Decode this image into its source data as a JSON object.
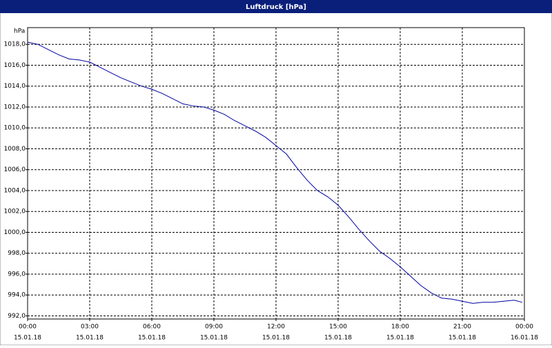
{
  "chart_data": {
    "type": "line",
    "title": "Luftdruck [hPa]",
    "y_unit": "hPa",
    "series": [
      {
        "name": "Luftdruck",
        "color": "#0000a0",
        "x": [
          0,
          0.5,
          1,
          1.5,
          2,
          2.5,
          3,
          3.5,
          4,
          4.5,
          5,
          5.5,
          6,
          6.5,
          7,
          7.5,
          8,
          8.5,
          9,
          9.5,
          10,
          10.5,
          11,
          11.5,
          12,
          12.5,
          13,
          13.5,
          14,
          14.5,
          15,
          15.5,
          16,
          16.5,
          17,
          17.5,
          18,
          18.5,
          19,
          19.5,
          20,
          20.5,
          21,
          21.5,
          22,
          22.5,
          23,
          23.5,
          23.9
        ],
        "values": [
          1018.2,
          1018.0,
          1017.5,
          1017.0,
          1016.6,
          1016.5,
          1016.3,
          1015.8,
          1015.3,
          1014.8,
          1014.4,
          1014.0,
          1013.7,
          1013.3,
          1012.8,
          1012.3,
          1012.1,
          1012.0,
          1011.7,
          1011.3,
          1010.7,
          1010.2,
          1009.7,
          1009.1,
          1008.3,
          1007.5,
          1006.2,
          1005.0,
          1004.0,
          1003.4,
          1002.6,
          1001.5,
          1000.3,
          999.2,
          998.2,
          997.5,
          996.7,
          995.8,
          994.9,
          994.2,
          993.7,
          993.6,
          993.4,
          993.2,
          993.3,
          993.3,
          993.4,
          993.5,
          993.3
        ]
      }
    ],
    "xlim": [
      0,
      24
    ],
    "xticks": [
      {
        "value": 0,
        "label": "00:00"
      },
      {
        "value": 3,
        "label": "03:00"
      },
      {
        "value": 6,
        "label": "06:00"
      },
      {
        "value": 9,
        "label": "09:00"
      },
      {
        "value": 12,
        "label": "12:00"
      },
      {
        "value": 15,
        "label": "15:00"
      },
      {
        "value": 18,
        "label": "18:00"
      },
      {
        "value": 21,
        "label": "21:00"
      },
      {
        "value": 24,
        "label": "00:00"
      }
    ],
    "xtick_dates": [
      "15.01.18",
      "15.01.18",
      "15.01.18",
      "15.01.18",
      "15.01.18",
      "15.01.18",
      "15.01.18",
      "15.01.18",
      "16.01.18"
    ],
    "ylim": [
      991.7,
      1019.6
    ],
    "yticks": [
      {
        "value": 992,
        "label": "992,0"
      },
      {
        "value": 994,
        "label": "994,0"
      },
      {
        "value": 996,
        "label": "996,0"
      },
      {
        "value": 998,
        "label": "998,0"
      },
      {
        "value": 1000,
        "label": "1000,0"
      },
      {
        "value": 1002,
        "label": "1002,0"
      },
      {
        "value": 1004,
        "label": "1004,0"
      },
      {
        "value": 1006,
        "label": "1006,0"
      },
      {
        "value": 1008,
        "label": "1008,0"
      },
      {
        "value": 1010,
        "label": "1010,0"
      },
      {
        "value": 1012,
        "label": "1012,0"
      },
      {
        "value": 1014,
        "label": "1014,0"
      },
      {
        "value": 1016,
        "label": "1016,0"
      },
      {
        "value": 1018,
        "label": "1018,0"
      }
    ],
    "grid": true
  }
}
